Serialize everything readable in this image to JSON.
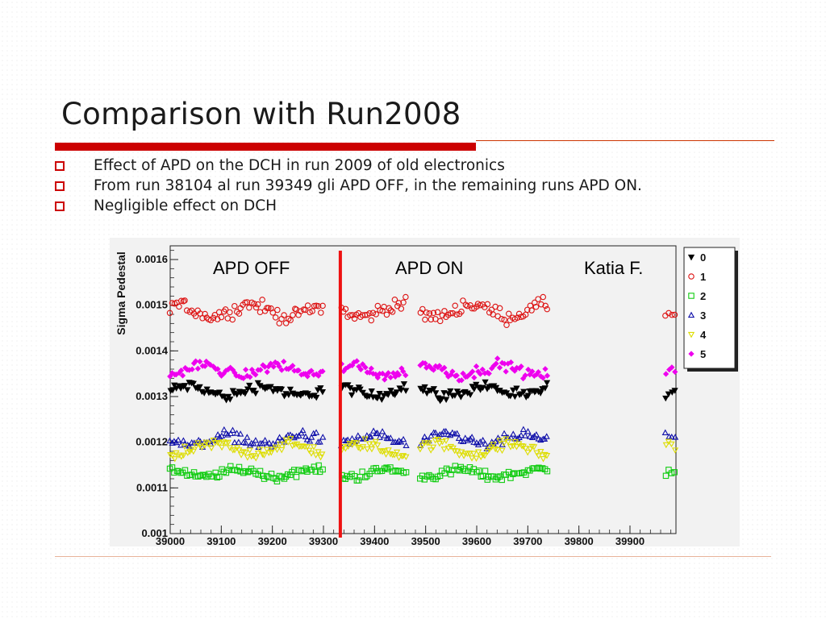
{
  "slide": {
    "title": "Comparison with Run2008",
    "bullets": [
      "Effect of APD on the DCH in run 2009 of old electronics",
      "From run 38104 al run 39349 gli APD OFF, in the remaining runs APD ON.",
      "Negligible effect on DCH"
    ],
    "accent_color": "#cc0000"
  },
  "chart_data": {
    "type": "scatter",
    "xlabel": "",
    "ylabel": "Sigma Pedestal",
    "xlim": [
      39000,
      39990
    ],
    "ylim": [
      0.001,
      0.00163
    ],
    "x_ticks": [
      39000,
      39100,
      39200,
      39300,
      39400,
      39500,
      39600,
      39700,
      39800,
      39900
    ],
    "x_tick_labels": [
      "39000",
      "39100",
      "39200",
      "39300",
      "39400",
      "39500",
      "39600",
      "39700",
      "39800",
      "39900"
    ],
    "y_ticks": [
      0.001,
      0.0011,
      0.0012,
      0.0013,
      0.0014,
      0.0015,
      0.0016
    ],
    "y_tick_labels": [
      "0.001",
      "0.0011",
      "0.0012",
      "0.0013",
      "0.0014",
      "0.0015",
      "0.0016"
    ],
    "grid": false,
    "legend_position": "right",
    "vertical_line": {
      "x": 39333,
      "color": "#ee1111"
    },
    "annotations": [
      "APD OFF",
      "APD ON",
      "Katia F."
    ],
    "run_ranges": [
      [
        39000,
        39300
      ],
      [
        39335,
        39465
      ],
      [
        39490,
        39740
      ],
      [
        39970,
        39990
      ]
    ],
    "series": [
      {
        "name": "0",
        "marker": "triangle-down-filled",
        "color": "#000000",
        "mean": 0.001312,
        "spread": 1.8e-05
      },
      {
        "name": "1",
        "marker": "circle-open",
        "color": "#dd1111",
        "mean": 0.001488,
        "spread": 2.2e-05
      },
      {
        "name": "2",
        "marker": "square-open",
        "color": "#11cc11",
        "mean": 0.001132,
        "spread": 1.4e-05
      },
      {
        "name": "3",
        "marker": "triangle-open",
        "color": "#1111aa",
        "mean": 0.001205,
        "spread": 1.8e-05
      },
      {
        "name": "4",
        "marker": "triangle-down-open",
        "color": "#dddd00",
        "mean": 0.001185,
        "spread": 1.8e-05
      },
      {
        "name": "5",
        "marker": "diamond-filled",
        "color": "#ee00ee",
        "mean": 0.001358,
        "spread": 1.8e-05
      }
    ]
  }
}
